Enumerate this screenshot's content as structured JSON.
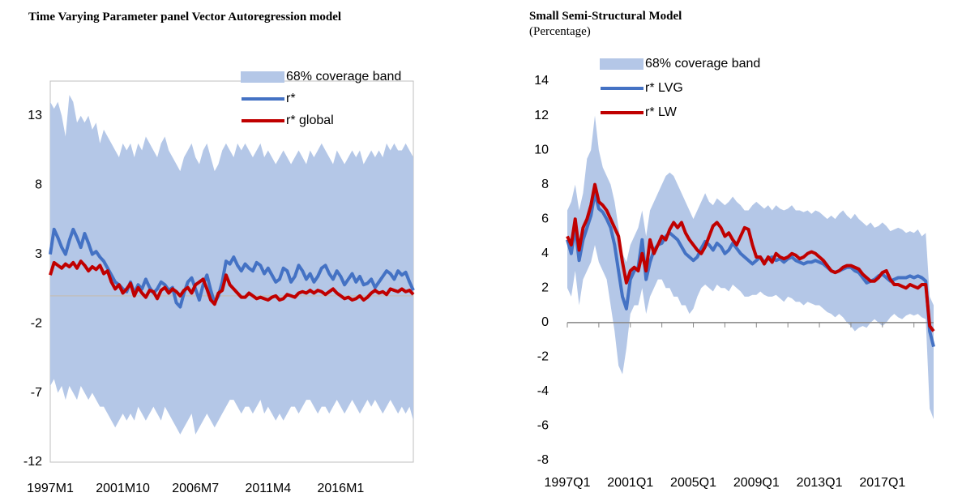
{
  "chart_data": [
    {
      "type": "line",
      "title": "Time Varying Parameter panel Vector Autoregression model",
      "categories": [
        "1997M1",
        null,
        null,
        null,
        null,
        null,
        null,
        null,
        null,
        null,
        null,
        null,
        null,
        null,
        null,
        null,
        null,
        null,
        null,
        "2001M10",
        null,
        null,
        null,
        null,
        null,
        null,
        null,
        null,
        null,
        null,
        null,
        null,
        null,
        null,
        null,
        null,
        null,
        null,
        "2006M7",
        null,
        null,
        null,
        null,
        null,
        null,
        null,
        null,
        null,
        null,
        null,
        null,
        null,
        null,
        null,
        null,
        null,
        null,
        "2011M4",
        null,
        null,
        null,
        null,
        null,
        null,
        null,
        null,
        null,
        null,
        null,
        null,
        null,
        null,
        null,
        null,
        null,
        null,
        "2016M1",
        null,
        null,
        null,
        null,
        null,
        null,
        null,
        null,
        null,
        null,
        null,
        null,
        null,
        null,
        null,
        null,
        null,
        null,
        null
      ],
      "ylim": [
        -12,
        15.5
      ],
      "yticks": [
        -12,
        -7,
        -2,
        3,
        8,
        13
      ],
      "frame": true,
      "legend": "upper right",
      "series": [
        {
          "name": "68% coverage band",
          "color": "#b4c7e7",
          "upper": [
            14.0,
            13.5,
            14.0,
            13.0,
            11.5,
            14.5,
            14.0,
            12.5,
            13.0,
            12.5,
            13.0,
            12.0,
            12.5,
            11.0,
            12.0,
            11.5,
            11.0,
            10.5,
            10.0,
            11.0,
            10.5,
            11.0,
            10.0,
            11.0,
            10.5,
            11.5,
            11.0,
            10.5,
            10.0,
            11.0,
            11.5,
            10.5,
            10.0,
            9.5,
            9.0,
            10.0,
            10.5,
            11.0,
            10.0,
            9.5,
            10.5,
            11.0,
            10.0,
            9.0,
            9.5,
            10.5,
            11.0,
            10.5,
            10.0,
            11.0,
            10.5,
            11.0,
            10.5,
            10.0,
            10.5,
            11.0,
            10.0,
            10.5,
            10.0,
            9.5,
            10.0,
            10.5,
            10.0,
            9.5,
            10.0,
            10.5,
            10.0,
            9.5,
            10.5,
            10.0,
            10.5,
            11.0,
            10.5,
            10.0,
            9.5,
            10.5,
            10.0,
            9.5,
            10.0,
            10.5,
            10.0,
            10.5,
            9.5,
            10.0,
            10.5,
            10.0,
            10.5,
            10.0,
            11.0,
            10.5,
            11.0,
            10.5,
            10.5,
            11.0,
            10.5,
            10.0
          ],
          "lower": [
            -6.5,
            -6.0,
            -7.0,
            -6.5,
            -7.5,
            -6.5,
            -7.0,
            -7.5,
            -6.5,
            -7.0,
            -7.5,
            -7.0,
            -7.5,
            -8.0,
            -8.0,
            -8.5,
            -9.0,
            -9.5,
            -9.0,
            -8.5,
            -9.0,
            -8.5,
            -9.0,
            -8.0,
            -8.5,
            -9.0,
            -8.5,
            -8.0,
            -8.5,
            -9.0,
            -8.0,
            -8.5,
            -9.0,
            -9.5,
            -10.0,
            -9.5,
            -9.0,
            -8.5,
            -10.0,
            -9.5,
            -9.0,
            -8.5,
            -9.0,
            -9.5,
            -9.0,
            -8.5,
            -8.0,
            -7.5,
            -7.5,
            -8.0,
            -8.5,
            -8.0,
            -8.0,
            -8.5,
            -8.0,
            -7.5,
            -8.5,
            -8.0,
            -8.5,
            -9.0,
            -8.5,
            -9.0,
            -8.5,
            -8.0,
            -8.0,
            -8.5,
            -8.0,
            -7.5,
            -7.5,
            -8.0,
            -8.5,
            -8.0,
            -8.0,
            -8.5,
            -8.0,
            -7.5,
            -8.0,
            -8.5,
            -8.0,
            -7.5,
            -8.0,
            -8.5,
            -8.0,
            -7.5,
            -8.0,
            -7.5,
            -8.0,
            -8.5,
            -8.0,
            -7.5,
            -8.0,
            -8.5,
            -8.0,
            -8.5,
            -8.0,
            -9.0
          ]
        },
        {
          "name": "r*",
          "color": "#4472c4",
          "values": [
            3.0,
            4.8,
            4.2,
            3.5,
            3.0,
            4.0,
            4.8,
            4.2,
            3.5,
            4.5,
            3.8,
            3.0,
            3.2,
            2.8,
            2.5,
            2.0,
            1.5,
            1.0,
            0.8,
            0.5,
            0.3,
            1.0,
            0.2,
            0.8,
            0.5,
            1.2,
            0.6,
            0.2,
            0.5,
            1.0,
            0.8,
            0.4,
            0.6,
            -0.5,
            -0.8,
            0.2,
            1.0,
            1.3,
            0.5,
            -0.3,
            0.8,
            1.5,
            0.4,
            -0.5,
            0.0,
            1.0,
            2.5,
            2.3,
            2.8,
            2.2,
            1.8,
            2.3,
            2.0,
            1.8,
            2.4,
            2.2,
            1.6,
            2.0,
            1.5,
            1.0,
            1.2,
            2.0,
            1.8,
            1.0,
            1.4,
            2.2,
            1.8,
            1.2,
            1.6,
            1.0,
            1.4,
            2.0,
            2.2,
            1.6,
            1.2,
            1.8,
            1.4,
            0.8,
            1.2,
            1.6,
            1.0,
            1.4,
            0.8,
            0.9,
            1.2,
            0.6,
            1.0,
            1.4,
            1.8,
            1.6,
            1.2,
            1.8,
            1.5,
            1.7,
            1.0,
            0.4
          ]
        },
        {
          "name": "r* global",
          "color": "#c00000",
          "values": [
            1.5,
            2.4,
            2.2,
            2.0,
            2.3,
            2.1,
            2.4,
            2.0,
            2.5,
            2.2,
            1.8,
            2.1,
            1.9,
            2.2,
            1.6,
            1.8,
            1.0,
            0.5,
            0.8,
            0.2,
            0.5,
            0.9,
            0.0,
            0.6,
            0.2,
            -0.1,
            0.4,
            0.3,
            -0.2,
            0.4,
            0.6,
            0.2,
            0.5,
            0.3,
            0.0,
            0.4,
            0.6,
            0.2,
            0.8,
            1.0,
            1.2,
            0.5,
            -0.3,
            -0.6,
            0.2,
            0.4,
            1.5,
            0.8,
            0.5,
            0.2,
            -0.1,
            -0.1,
            0.2,
            0.0,
            -0.2,
            -0.1,
            -0.2,
            -0.3,
            -0.1,
            0.0,
            -0.3,
            -0.2,
            0.1,
            0.0,
            -0.1,
            0.2,
            0.3,
            0.2,
            0.4,
            0.2,
            0.4,
            0.3,
            0.1,
            0.3,
            0.5,
            0.2,
            0.0,
            -0.2,
            -0.1,
            -0.3,
            -0.2,
            0.0,
            -0.3,
            -0.1,
            0.2,
            0.4,
            0.2,
            0.3,
            0.1,
            0.5,
            0.4,
            0.3,
            0.5,
            0.3,
            0.4,
            0.1
          ]
        }
      ]
    },
    {
      "type": "line",
      "title": "Small Semi-Structural Model",
      "subtitle": "(Percentage)",
      "categories": [
        "1997Q1",
        null,
        null,
        null,
        null,
        null,
        null,
        null,
        null,
        null,
        null,
        null,
        null,
        null,
        null,
        null,
        "2001Q1",
        null,
        null,
        null,
        null,
        null,
        null,
        null,
        null,
        null,
        null,
        null,
        null,
        null,
        null,
        null,
        "2005Q1",
        null,
        null,
        null,
        null,
        null,
        null,
        null,
        null,
        null,
        null,
        null,
        null,
        null,
        null,
        null,
        "2009Q1",
        null,
        null,
        null,
        null,
        null,
        null,
        null,
        null,
        null,
        null,
        null,
        null,
        null,
        null,
        null,
        "2013Q1",
        null,
        null,
        null,
        null,
        null,
        null,
        null,
        null,
        null,
        null,
        null,
        null,
        null,
        null,
        null,
        "2017Q1",
        null,
        null,
        null,
        null,
        null,
        null,
        null,
        null,
        null,
        null,
        null,
        null,
        null
      ],
      "ylim": [
        -8,
        14
      ],
      "yticks": [
        -8,
        -6,
        -4,
        -2,
        0,
        2,
        4,
        6,
        8,
        10,
        12,
        14
      ],
      "frame": false,
      "legend": "upper right",
      "series": [
        {
          "name": "68% coverage band",
          "color": "#b4c7e7",
          "upper": [
            6.5,
            7.0,
            8.0,
            6.5,
            7.5,
            9.5,
            10.0,
            12.0,
            10.0,
            9.0,
            8.5,
            8.0,
            7.0,
            5.5,
            4.0,
            3.5,
            4.5,
            5.0,
            5.5,
            6.5,
            5.0,
            6.5,
            7.0,
            7.5,
            8.0,
            8.5,
            8.7,
            8.5,
            8.0,
            7.5,
            7.0,
            6.5,
            6.0,
            6.5,
            7.0,
            7.5,
            7.0,
            6.8,
            7.2,
            7.0,
            6.8,
            7.0,
            7.3,
            7.0,
            6.8,
            6.5,
            6.5,
            6.8,
            7.0,
            6.8,
            6.6,
            6.8,
            6.5,
            6.8,
            6.6,
            6.5,
            6.6,
            6.8,
            6.5,
            6.5,
            6.4,
            6.5,
            6.3,
            6.5,
            6.4,
            6.2,
            6.0,
            6.2,
            6.0,
            6.3,
            6.5,
            6.2,
            6.0,
            6.3,
            6.0,
            5.8,
            5.6,
            5.8,
            5.5,
            5.6,
            5.8,
            5.6,
            5.3,
            5.4,
            5.5,
            5.4,
            5.2,
            5.3,
            5.2,
            5.4,
            5.0,
            5.2,
            1.5,
            1.0
          ],
          "lower": [
            2.0,
            1.5,
            3.0,
            1.0,
            2.5,
            3.0,
            3.5,
            4.5,
            3.5,
            3.0,
            2.5,
            1.0,
            -0.5,
            -2.5,
            -3.0,
            -1.5,
            0.5,
            1.0,
            1.0,
            2.0,
            0.5,
            1.5,
            2.0,
            2.5,
            2.5,
            2.0,
            2.0,
            1.5,
            1.5,
            1.0,
            1.0,
            0.5,
            0.8,
            1.5,
            2.0,
            2.2,
            2.0,
            1.8,
            2.2,
            2.0,
            2.0,
            1.8,
            2.2,
            2.0,
            1.8,
            1.5,
            1.5,
            1.6,
            1.6,
            1.8,
            1.6,
            1.5,
            1.5,
            1.6,
            1.4,
            1.2,
            1.5,
            1.4,
            1.2,
            1.2,
            1.0,
            1.2,
            1.1,
            1.0,
            1.0,
            0.8,
            0.6,
            0.5,
            0.3,
            0.5,
            0.3,
            0.0,
            -0.2,
            -0.5,
            -0.3,
            -0.2,
            -0.3,
            0.0,
            0.2,
            0.0,
            -0.2,
            0.0,
            0.3,
            0.5,
            0.3,
            0.2,
            0.4,
            0.5,
            0.4,
            0.5,
            0.3,
            0.2,
            -5.0,
            -5.6
          ]
        },
        {
          "name": "r* LVG",
          "color": "#4472c4",
          "values": [
            4.8,
            4.0,
            5.5,
            3.6,
            4.8,
            5.5,
            6.2,
            7.5,
            6.6,
            6.4,
            6.0,
            5.5,
            4.5,
            3.0,
            1.5,
            0.8,
            2.5,
            3.0,
            3.2,
            4.8,
            2.5,
            3.5,
            4.2,
            4.5,
            4.6,
            5.0,
            5.2,
            5.0,
            4.8,
            4.4,
            4.0,
            3.8,
            3.6,
            3.8,
            4.3,
            4.7,
            4.5,
            4.2,
            4.6,
            4.4,
            4.0,
            4.2,
            4.6,
            4.3,
            4.0,
            3.8,
            3.6,
            3.4,
            3.6,
            3.8,
            3.5,
            3.7,
            3.8,
            3.6,
            3.7,
            3.5,
            3.7,
            3.8,
            3.6,
            3.5,
            3.4,
            3.5,
            3.5,
            3.6,
            3.5,
            3.4,
            3.2,
            3.0,
            2.9,
            3.0,
            3.1,
            3.2,
            3.2,
            3.0,
            2.9,
            2.6,
            2.3,
            2.4,
            2.5,
            2.7,
            2.8,
            2.6,
            2.4,
            2.5,
            2.6,
            2.6,
            2.6,
            2.7,
            2.6,
            2.7,
            2.6,
            2.4,
            -0.5,
            -1.4
          ]
        },
        {
          "name": "r* LW",
          "color": "#c00000",
          "values": [
            5.0,
            4.5,
            6.0,
            4.2,
            5.5,
            6.0,
            6.8,
            8.0,
            7.0,
            6.8,
            6.5,
            6.0,
            5.5,
            5.0,
            3.5,
            2.3,
            3.0,
            3.2,
            3.0,
            4.0,
            3.0,
            4.8,
            4.0,
            4.5,
            5.0,
            4.8,
            5.4,
            5.8,
            5.5,
            5.8,
            5.2,
            4.8,
            4.5,
            4.2,
            4.0,
            4.4,
            5.0,
            5.6,
            5.8,
            5.5,
            5.0,
            5.2,
            4.8,
            4.5,
            5.0,
            5.5,
            5.4,
            4.5,
            3.8,
            3.8,
            3.4,
            3.8,
            3.5,
            4.0,
            3.8,
            3.7,
            3.8,
            4.0,
            3.9,
            3.7,
            3.8,
            4.0,
            4.1,
            4.0,
            3.8,
            3.6,
            3.3,
            3.0,
            2.9,
            3.0,
            3.2,
            3.3,
            3.3,
            3.2,
            3.1,
            2.8,
            2.6,
            2.4,
            2.4,
            2.6,
            2.9,
            3.0,
            2.5,
            2.2,
            2.2,
            2.1,
            2.0,
            2.2,
            2.1,
            2.0,
            2.2,
            2.2,
            -0.2,
            -0.5
          ]
        }
      ]
    }
  ]
}
